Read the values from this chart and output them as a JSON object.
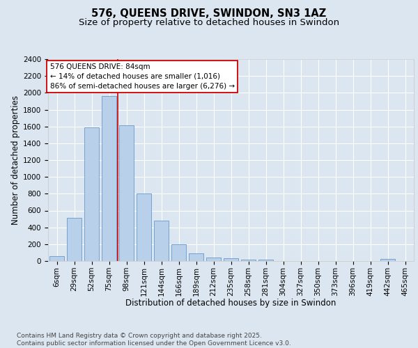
{
  "title_line1": "576, QUEENS DRIVE, SWINDON, SN3 1AZ",
  "title_line2": "Size of property relative to detached houses in Swindon",
  "xlabel": "Distribution of detached houses by size in Swindon",
  "ylabel": "Number of detached properties",
  "categories": [
    "6sqm",
    "29sqm",
    "52sqm",
    "75sqm",
    "98sqm",
    "121sqm",
    "144sqm",
    "166sqm",
    "189sqm",
    "212sqm",
    "235sqm",
    "258sqm",
    "281sqm",
    "304sqm",
    "327sqm",
    "350sqm",
    "373sqm",
    "396sqm",
    "419sqm",
    "442sqm",
    "465sqm"
  ],
  "values": [
    55,
    510,
    1590,
    1960,
    1610,
    805,
    480,
    200,
    95,
    40,
    30,
    20,
    15,
    0,
    0,
    0,
    0,
    0,
    0,
    25,
    0
  ],
  "bar_color": "#b8d0ea",
  "bar_edge_color": "#6699cc",
  "annotation_text": "576 QUEENS DRIVE: 84sqm\n← 14% of detached houses are smaller (1,016)\n86% of semi-detached houses are larger (6,276) →",
  "annotation_box_face": "#ffffff",
  "annotation_box_edge": "#cc0000",
  "vline_color": "#cc0000",
  "vline_index": 3.5,
  "ylim": [
    0,
    2400
  ],
  "yticks": [
    0,
    200,
    400,
    600,
    800,
    1000,
    1200,
    1400,
    1600,
    1800,
    2000,
    2200,
    2400
  ],
  "background_color": "#dce6f0",
  "grid_color": "#ffffff",
  "footer_text": "Contains HM Land Registry data © Crown copyright and database right 2025.\nContains public sector information licensed under the Open Government Licence v3.0.",
  "title_fontsize": 10.5,
  "subtitle_fontsize": 9.5,
  "axis_label_fontsize": 8.5,
  "tick_fontsize": 7.5,
  "annotation_fontsize": 7.5,
  "footer_fontsize": 6.5
}
